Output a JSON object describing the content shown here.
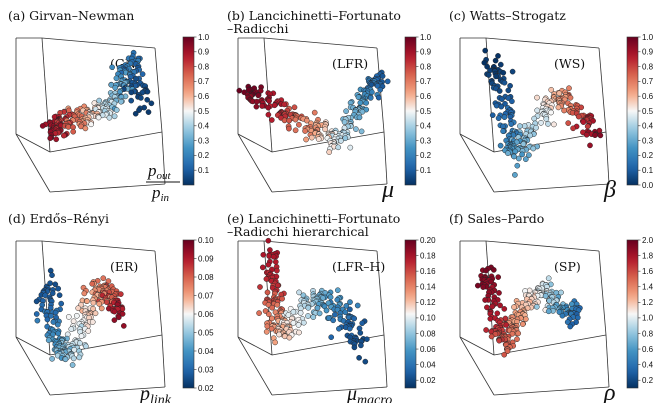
{
  "chart_data": [
    {
      "type": "scatter",
      "panel": "(a)",
      "title": "(a) Girvan–Newman",
      "inset_label": "(GN)",
      "colorbar": {
        "label_main": "p",
        "label_sub": "out",
        "label_den": "p",
        "label_den_sub": "in",
        "min": 0.0,
        "max": 1.0,
        "ticks": [
          "0.1",
          "0.2",
          "0.3",
          "0.4",
          "0.5",
          "0.6",
          "0.7",
          "0.8",
          "0.9",
          "1.0"
        ],
        "tick_values": [
          0.1,
          0.2,
          0.3,
          0.4,
          0.5,
          0.6,
          0.7,
          0.8,
          0.9,
          1.0
        ]
      },
      "curve": [
        [
          0.22,
          0.4,
          0.95
        ],
        [
          0.27,
          0.42,
          0.88
        ],
        [
          0.33,
          0.45,
          0.8
        ],
        [
          0.4,
          0.48,
          0.68
        ],
        [
          0.47,
          0.5,
          0.55
        ],
        [
          0.55,
          0.52,
          0.45
        ],
        [
          0.62,
          0.6,
          0.35
        ],
        [
          0.67,
          0.72,
          0.25
        ],
        [
          0.71,
          0.82,
          0.15
        ],
        [
          0.73,
          0.68,
          0.08
        ],
        [
          0.75,
          0.55,
          0.02
        ]
      ],
      "spread": 0.035
    },
    {
      "type": "scatter",
      "panel": "(b)",
      "title": "(b) Lancichinetti–Fortunato –Radicchi",
      "title_lines": [
        "(b) Lancichinetti–Fortunato",
        "–Radicchi"
      ],
      "inset_label": "(LFR)",
      "colorbar": {
        "label_main": "μ",
        "label_sub": "",
        "min": 0.0,
        "max": 1.0,
        "ticks": [
          "0.1",
          "0.2",
          "0.3",
          "0.4",
          "0.5",
          "0.6",
          "0.7",
          "0.8",
          "0.9",
          "1.0"
        ],
        "tick_values": [
          0.1,
          0.2,
          0.3,
          0.4,
          0.5,
          0.6,
          0.7,
          0.8,
          0.9,
          1.0
        ]
      },
      "curve": [
        [
          0.08,
          0.66,
          1.0
        ],
        [
          0.18,
          0.58,
          0.92
        ],
        [
          0.3,
          0.52,
          0.82
        ],
        [
          0.42,
          0.44,
          0.7
        ],
        [
          0.52,
          0.38,
          0.58
        ],
        [
          0.6,
          0.32,
          0.48
        ],
        [
          0.68,
          0.42,
          0.38
        ],
        [
          0.75,
          0.55,
          0.28
        ],
        [
          0.82,
          0.66,
          0.18
        ],
        [
          0.88,
          0.72,
          0.08
        ]
      ],
      "spread": 0.03
    },
    {
      "type": "scatter",
      "panel": "(c)",
      "title": "(c) Watts–Strogatz",
      "inset_label": "(WS)",
      "colorbar": {
        "label_main": "β",
        "label_sub": "",
        "min": 0.0,
        "max": 1.0,
        "ticks": [
          "0.0",
          "0.1",
          "0.2",
          "0.3",
          "0.4",
          "0.5",
          "0.6",
          "0.7",
          "0.8",
          "0.9",
          "1.0"
        ],
        "tick_values": [
          0.0,
          0.1,
          0.2,
          0.3,
          0.4,
          0.5,
          0.6,
          0.7,
          0.8,
          0.9,
          1.0
        ]
      },
      "curve": [
        [
          0.22,
          0.85,
          0.0
        ],
        [
          0.25,
          0.7,
          0.05
        ],
        [
          0.29,
          0.52,
          0.12
        ],
        [
          0.33,
          0.35,
          0.2
        ],
        [
          0.36,
          0.25,
          0.28
        ],
        [
          0.42,
          0.34,
          0.36
        ],
        [
          0.5,
          0.48,
          0.46
        ],
        [
          0.58,
          0.6,
          0.58
        ],
        [
          0.66,
          0.58,
          0.7
        ],
        [
          0.76,
          0.48,
          0.82
        ],
        [
          0.84,
          0.36,
          0.95
        ]
      ],
      "spread": 0.03
    },
    {
      "type": "scatter",
      "panel": "(d)",
      "title": "(d) Erdős–Rényi",
      "inset_label": "(ER)",
      "colorbar": {
        "label_main": "p",
        "label_sub": "link",
        "min": 0.02,
        "max": 0.1,
        "ticks": [
          "0.02",
          "0.03",
          "0.04",
          "0.05",
          "0.06",
          "0.07",
          "0.08",
          "0.09",
          "0.10"
        ],
        "tick_values": [
          0.02,
          0.03,
          0.04,
          0.05,
          0.06,
          0.07,
          0.08,
          0.09,
          0.1
        ]
      },
      "curve": [
        [
          0.2,
          0.7,
          0.025
        ],
        [
          0.22,
          0.55,
          0.03
        ],
        [
          0.25,
          0.38,
          0.038
        ],
        [
          0.3,
          0.28,
          0.046
        ],
        [
          0.36,
          0.3,
          0.053
        ],
        [
          0.42,
          0.45,
          0.06
        ],
        [
          0.48,
          0.6,
          0.068
        ],
        [
          0.54,
          0.68,
          0.076
        ],
        [
          0.6,
          0.62,
          0.085
        ],
        [
          0.63,
          0.5,
          0.095
        ]
      ],
      "spread": 0.035
    },
    {
      "type": "scatter",
      "panel": "(e)",
      "title": "(e) Lancichinetti–Fortunato –Radicchi hierarchical",
      "title_lines": [
        "(e) Lancichinetti–Fortunato",
        "–Radicchi hierarchical"
      ],
      "inset_label": "(LFR–H)",
      "colorbar": {
        "label_main": "μ",
        "label_sub": "macro",
        "min": 0.01,
        "max": 0.2,
        "ticks": [
          "0.02",
          "0.04",
          "0.06",
          "0.08",
          "0.10",
          "0.12",
          "0.14",
          "0.16",
          "0.18",
          "0.20"
        ],
        "tick_values": [
          0.02,
          0.04,
          0.06,
          0.08,
          0.1,
          0.12,
          0.14,
          0.16,
          0.18,
          0.2
        ]
      },
      "curve": [
        [
          0.22,
          0.9,
          0.18
        ],
        [
          0.24,
          0.72,
          0.17
        ],
        [
          0.24,
          0.55,
          0.15
        ],
        [
          0.26,
          0.42,
          0.13
        ],
        [
          0.33,
          0.45,
          0.11
        ],
        [
          0.42,
          0.58,
          0.09
        ],
        [
          0.52,
          0.62,
          0.07
        ],
        [
          0.62,
          0.56,
          0.05
        ],
        [
          0.7,
          0.45,
          0.03
        ],
        [
          0.76,
          0.32,
          0.02
        ]
      ],
      "spread": 0.035
    },
    {
      "type": "scatter",
      "panel": "(f)",
      "title": "(f) Sales–Pardo",
      "inset_label": "(SP)",
      "colorbar": {
        "label_main": "ρ",
        "label_sub": "",
        "min": 0.1,
        "max": 2.0,
        "ticks": [
          "0.2",
          "0.4",
          "0.6",
          "0.8",
          "1.0",
          "1.2",
          "1.4",
          "1.6",
          "1.8",
          "2.0"
        ],
        "tick_values": [
          0.2,
          0.4,
          0.6,
          0.8,
          1.0,
          1.2,
          1.4,
          1.6,
          1.8,
          2.0
        ]
      },
      "curve": [
        [
          0.18,
          0.8,
          1.95
        ],
        [
          0.2,
          0.65,
          1.85
        ],
        [
          0.24,
          0.45,
          1.7
        ],
        [
          0.29,
          0.33,
          1.55
        ],
        [
          0.34,
          0.42,
          1.4
        ],
        [
          0.4,
          0.56,
          1.25
        ],
        [
          0.48,
          0.66,
          1.05
        ],
        [
          0.56,
          0.64,
          0.85
        ],
        [
          0.64,
          0.56,
          0.55
        ],
        [
          0.72,
          0.48,
          0.3
        ]
      ],
      "spread": 0.03
    }
  ]
}
